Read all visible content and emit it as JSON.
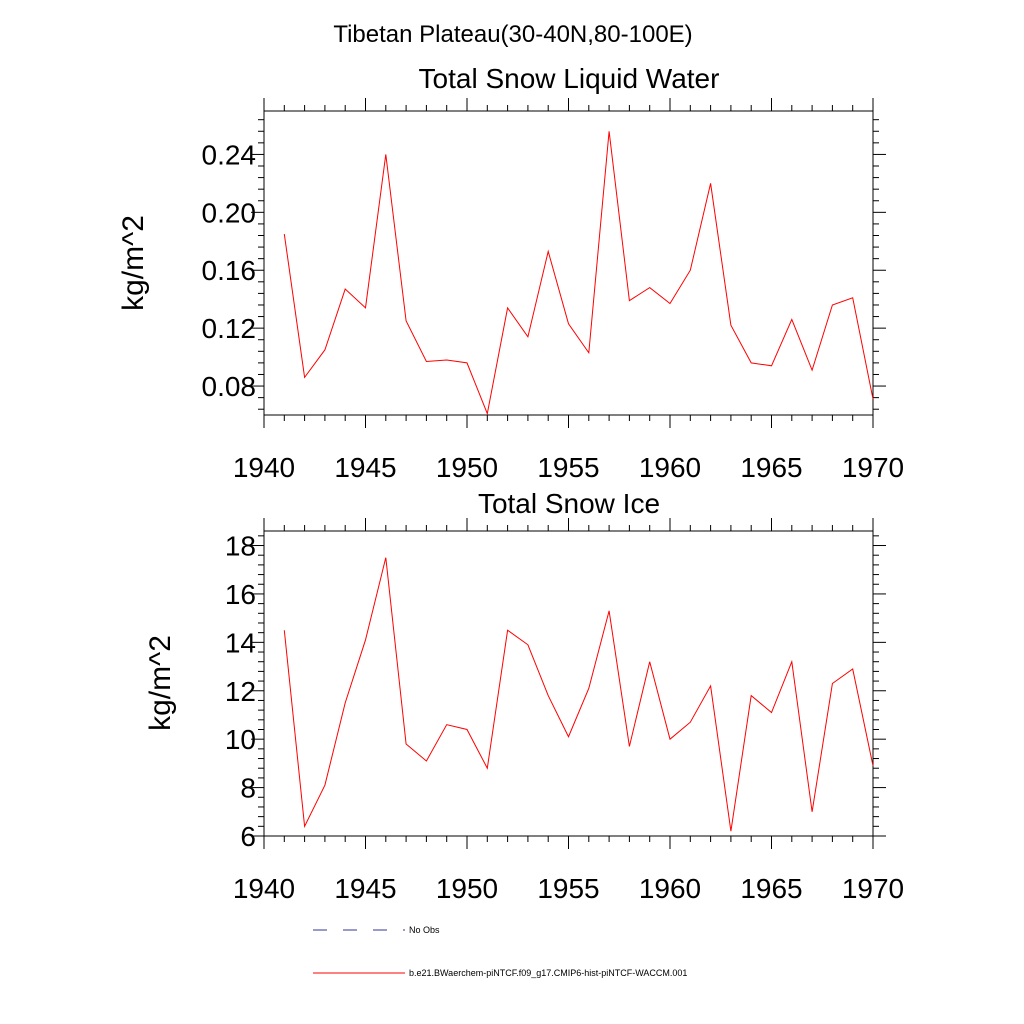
{
  "figure": {
    "suptitle": "Tibetan Plateau(30-40N,80-100E)"
  },
  "legend": {
    "entries": [
      {
        "label": "No Obs",
        "color": "#333399",
        "style": "dashed"
      },
      {
        "label": "b.e21.BWaerchem-piNTCF.f09_g17.CMIP6-hist-piNTCF-WACCM.001",
        "color": "#ff0000",
        "style": "solid"
      }
    ]
  },
  "chart_data": [
    {
      "type": "line",
      "title": "Total Snow Liquid Water",
      "ylabel": "kg/m^2",
      "xlabel": "",
      "xlim": [
        1940,
        1970
      ],
      "ylim": [
        0.06,
        0.27
      ],
      "xticks": [
        "1940",
        "1945",
        "1950",
        "1955",
        "1960",
        "1965",
        "1970"
      ],
      "yticks": [
        "0.08",
        "0.12",
        "0.16",
        "0.20",
        "0.24"
      ],
      "x": [
        1941,
        1942,
        1943,
        1944,
        1945,
        1946,
        1947,
        1948,
        1949,
        1950,
        1951,
        1952,
        1953,
        1954,
        1955,
        1956,
        1957,
        1958,
        1959,
        1960,
        1961,
        1962,
        1963,
        1964,
        1965,
        1966,
        1967,
        1968,
        1969,
        1970
      ],
      "series": [
        {
          "color": "#ff0000",
          "values": [
            0.185,
            0.086,
            0.105,
            0.147,
            0.134,
            0.24,
            0.125,
            0.097,
            0.098,
            0.096,
            0.061,
            0.134,
            0.114,
            0.173,
            0.123,
            0.103,
            0.256,
            0.139,
            0.148,
            0.137,
            0.16,
            0.22,
            0.122,
            0.096,
            0.094,
            0.126,
            0.091,
            0.136,
            0.141,
            0.071
          ]
        }
      ]
    },
    {
      "type": "line",
      "title": "Total Snow Ice",
      "ylabel": "kg/m^2",
      "xlabel": "",
      "xlim": [
        1940,
        1970
      ],
      "ylim": [
        6,
        18.6
      ],
      "xticks": [
        "1940",
        "1945",
        "1950",
        "1955",
        "1960",
        "1965",
        "1970"
      ],
      "yticks": [
        "6",
        "8",
        "10",
        "12",
        "14",
        "16",
        "18"
      ],
      "x": [
        1941,
        1942,
        1943,
        1944,
        1945,
        1946,
        1947,
        1948,
        1949,
        1950,
        1951,
        1952,
        1953,
        1954,
        1955,
        1956,
        1957,
        1958,
        1959,
        1960,
        1961,
        1962,
        1963,
        1964,
        1965,
        1966,
        1967,
        1968,
        1969,
        1970
      ],
      "series": [
        {
          "color": "#ff0000",
          "values": [
            14.5,
            6.4,
            8.1,
            11.5,
            14.1,
            17.5,
            9.8,
            9.1,
            10.6,
            10.4,
            8.8,
            14.5,
            13.9,
            11.8,
            10.1,
            12.1,
            15.3,
            9.7,
            13.2,
            10.0,
            10.7,
            12.2,
            6.2,
            11.8,
            11.1,
            13.2,
            7.0,
            12.3,
            12.9,
            8.9
          ]
        }
      ]
    }
  ]
}
